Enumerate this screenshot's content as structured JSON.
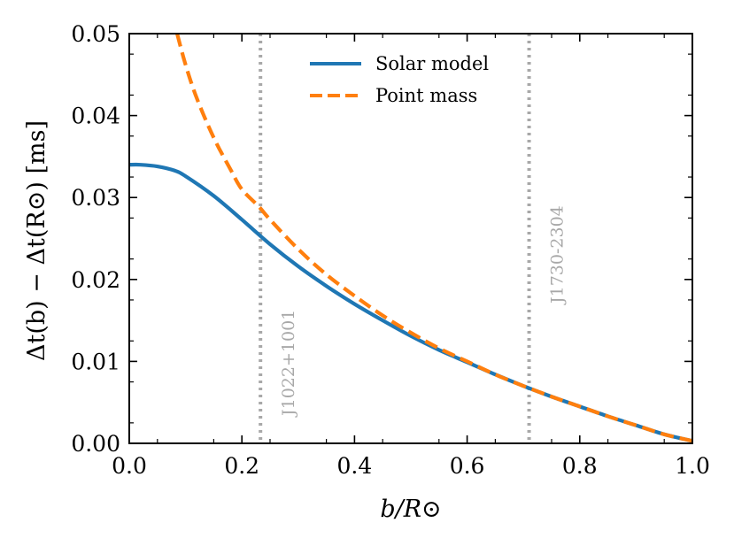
{
  "chart_data": {
    "type": "line",
    "title": "",
    "xlabel": "b/R⊙",
    "ylabel": "Δt(b) − Δt(R⊙) [ms]",
    "xlim": [
      0.0,
      1.0
    ],
    "ylim": [
      0.0,
      0.05
    ],
    "x_ticks": [
      "0.0",
      "0.2",
      "0.4",
      "0.6",
      "0.8",
      "1.0"
    ],
    "y_ticks": [
      "0.00",
      "0.01",
      "0.02",
      "0.03",
      "0.04",
      "0.05"
    ],
    "grid": false,
    "legend_position": "top-center",
    "series": [
      {
        "name": "Solar model",
        "color": "#1f77b4",
        "style": "solid",
        "x": [
          0.0,
          0.02,
          0.05,
          0.08,
          0.1,
          0.15,
          0.2,
          0.25,
          0.3,
          0.35,
          0.4,
          0.45,
          0.5,
          0.55,
          0.6,
          0.65,
          0.7,
          0.75,
          0.8,
          0.85,
          0.9,
          0.95,
          1.0
        ],
        "y": [
          0.034,
          0.034,
          0.0338,
          0.0333,
          0.0326,
          0.0302,
          0.0273,
          0.0243,
          0.0216,
          0.0192,
          0.017,
          0.015,
          0.0131,
          0.0114,
          0.0099,
          0.0084,
          0.007,
          0.0057,
          0.0045,
          0.0033,
          0.0022,
          0.0011,
          0.0003
        ]
      },
      {
        "name": "Point mass",
        "color": "#ff7f0e",
        "style": "dashed",
        "x": [
          0.085,
          0.1,
          0.12,
          0.15,
          0.18,
          0.2,
          0.23,
          0.25,
          0.3,
          0.35,
          0.4,
          0.45,
          0.5,
          0.55,
          0.6,
          0.65,
          0.7,
          0.75,
          0.8,
          0.85,
          0.9,
          0.95,
          1.0
        ],
        "y": [
          0.05,
          0.0462,
          0.0421,
          0.0373,
          0.0334,
          0.031,
          0.0289,
          0.0273,
          0.0237,
          0.0206,
          0.018,
          0.0156,
          0.0135,
          0.0116,
          0.01,
          0.0084,
          0.007,
          0.0057,
          0.0045,
          0.0033,
          0.0022,
          0.0011,
          0.0003
        ]
      }
    ],
    "vlines": [
      {
        "x": 0.233,
        "label": "J1022+1001",
        "color": "#a8a8a8"
      },
      {
        "x": 0.71,
        "label": "J1730-2304",
        "color": "#a8a8a8"
      }
    ]
  }
}
